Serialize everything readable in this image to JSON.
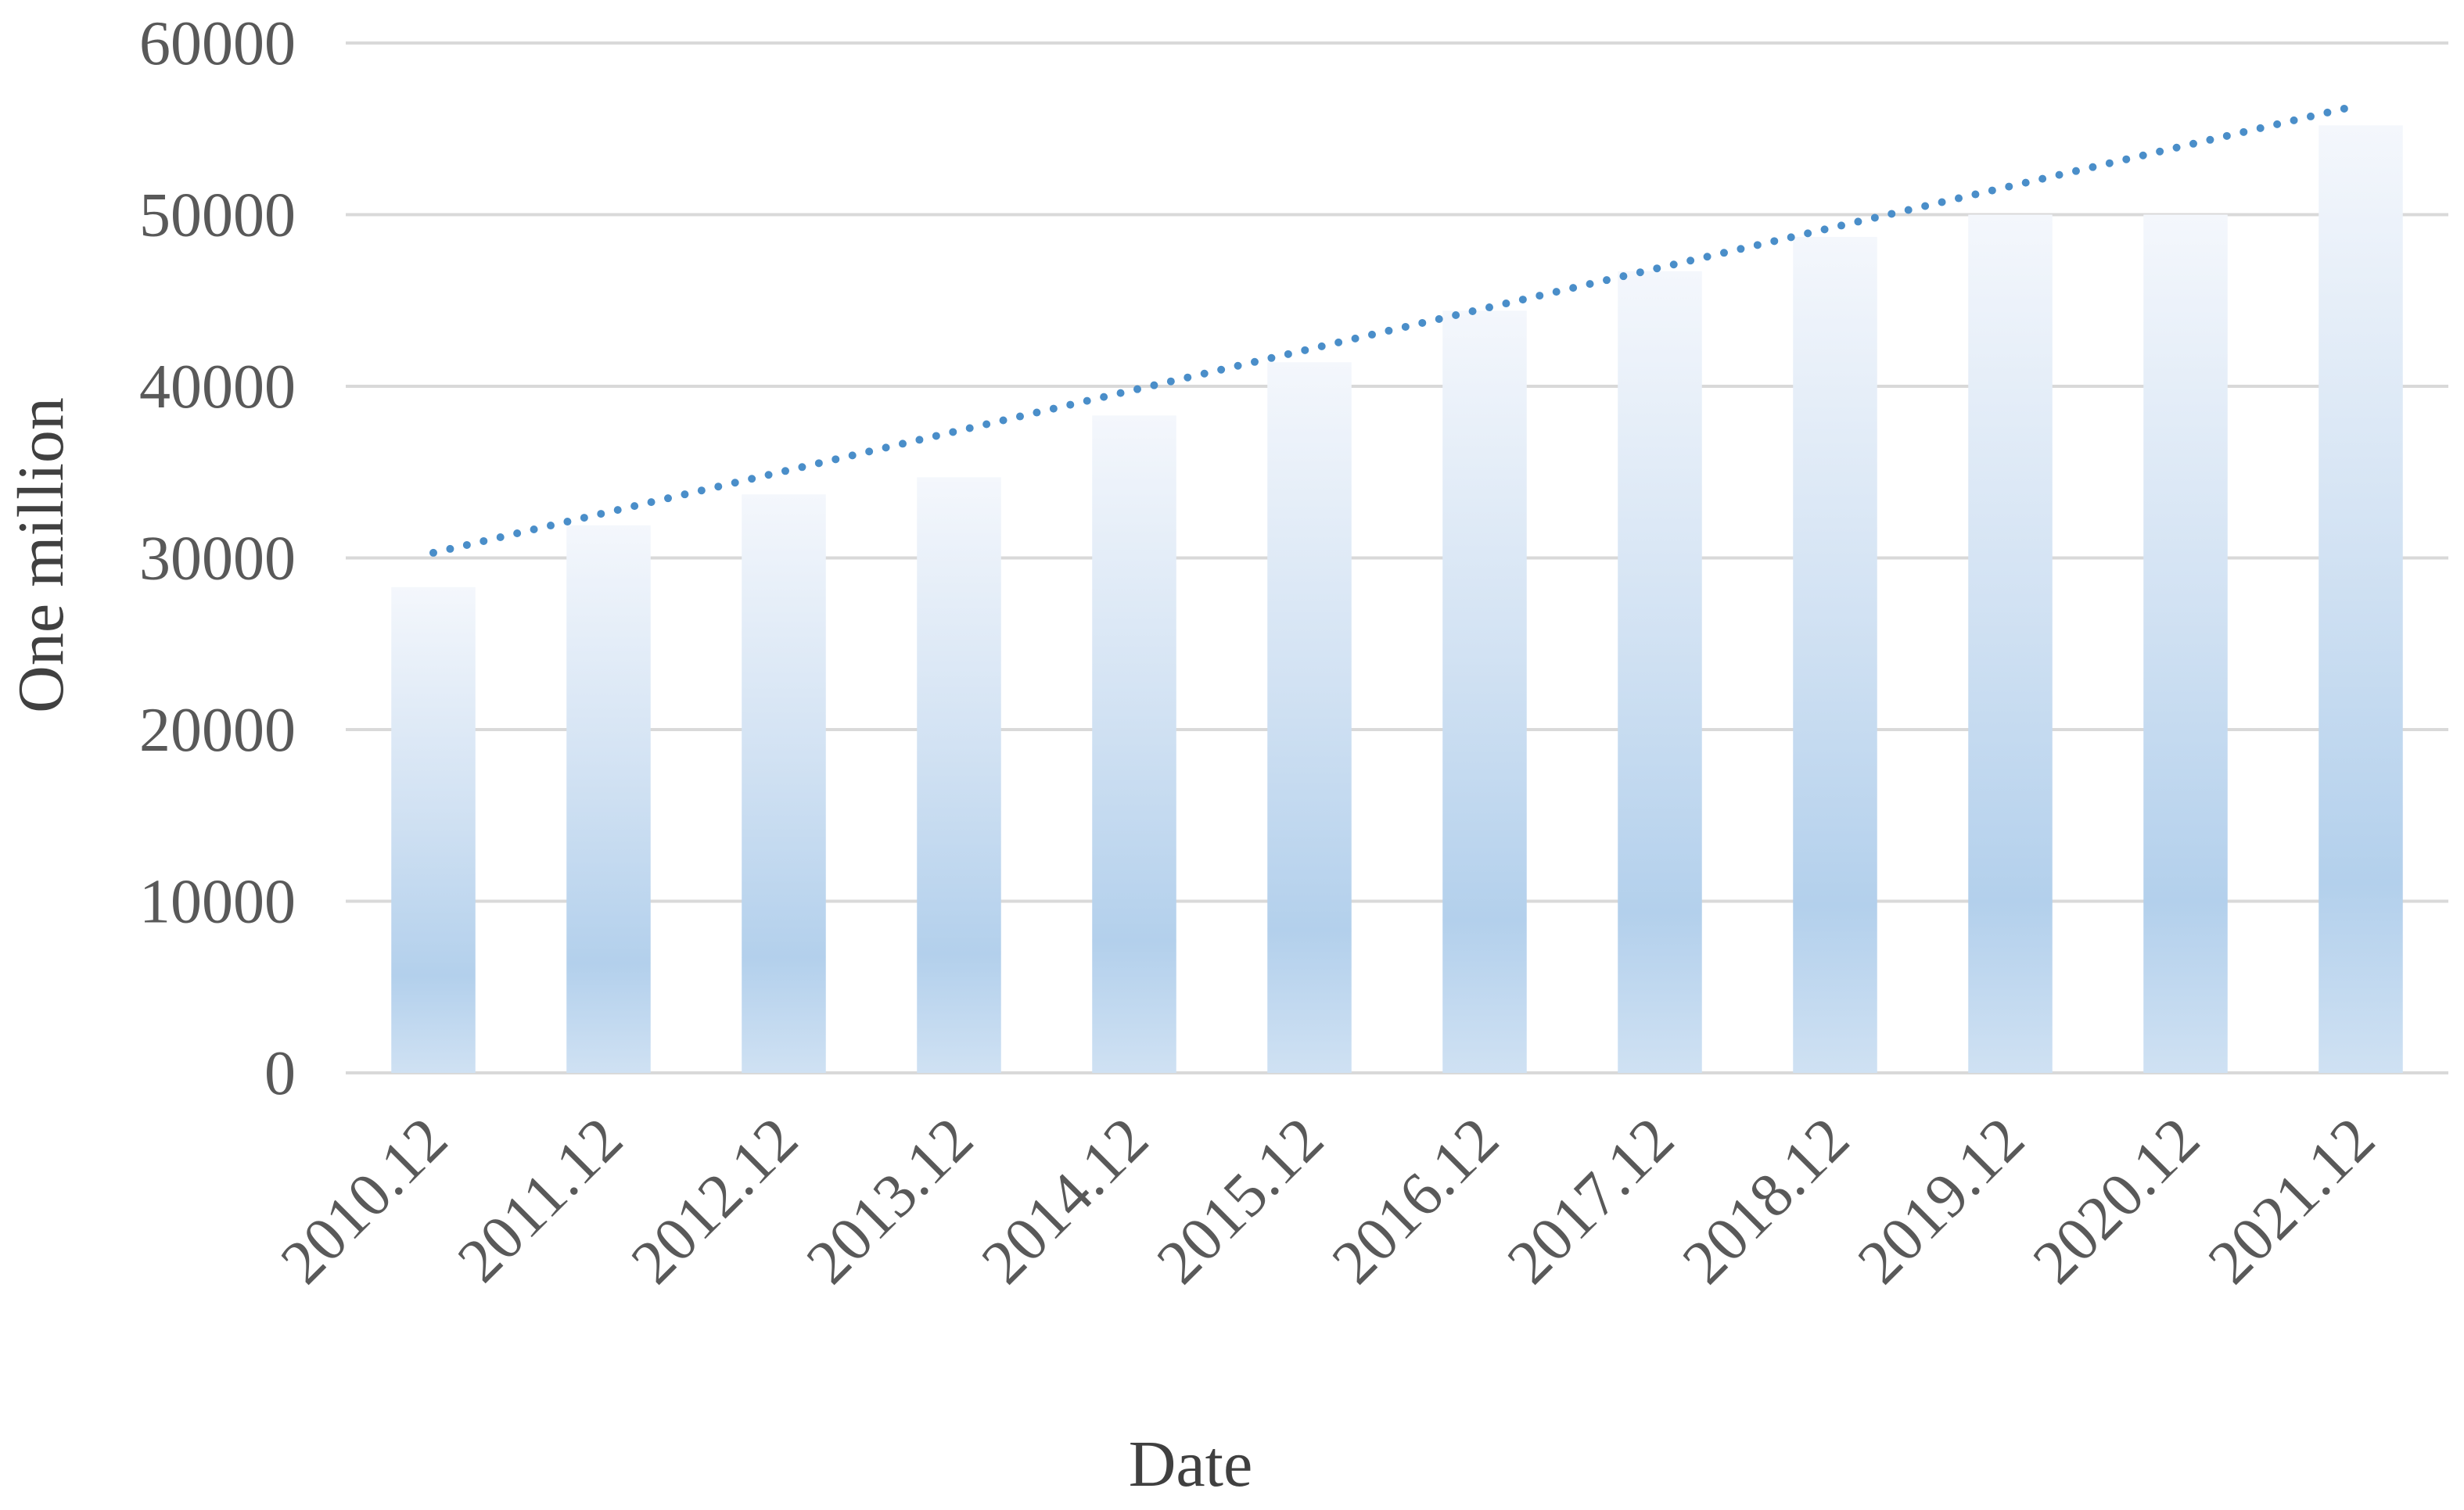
{
  "chart_data": {
    "type": "bar",
    "title": "",
    "xlabel": "Date",
    "ylabel": "One million",
    "ylim": [
      0,
      60000
    ],
    "yticks": [
      0,
      10000,
      20000,
      30000,
      40000,
      50000,
      60000
    ],
    "grid": true,
    "categories": [
      "2010.12",
      "2011.12",
      "2012.12",
      "2013.12",
      "2014.12",
      "2015.12",
      "2016.12",
      "2017.12",
      "2018.12",
      "2019.12",
      "2020.12",
      "2021.12"
    ],
    "values": [
      28300,
      31900,
      33700,
      34700,
      38300,
      41400,
      44400,
      46700,
      48700,
      50000,
      50000,
      55200
    ],
    "trendline": {
      "type": "linear",
      "style": "dotted",
      "start_value": 30300,
      "end_value": 56400
    },
    "colors": {
      "bar_light": "#f2f6fc",
      "bar_mid": "#b7d3ec",
      "bar_dark": "#a9cbe8",
      "trendline": "#4a8ec9",
      "gridline": "#d9d9d9",
      "text": "#595959"
    }
  }
}
